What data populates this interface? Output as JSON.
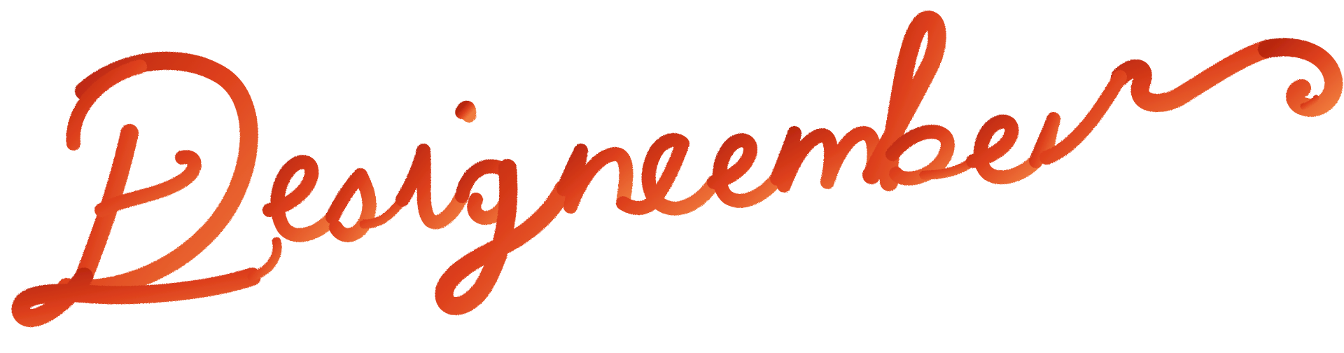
{
  "logo": {
    "wordmark_text": "Designcember",
    "ink_colors": {
      "deep": "#b8260f",
      "main": "#dd3f1c",
      "light": "#f07a3c"
    }
  }
}
